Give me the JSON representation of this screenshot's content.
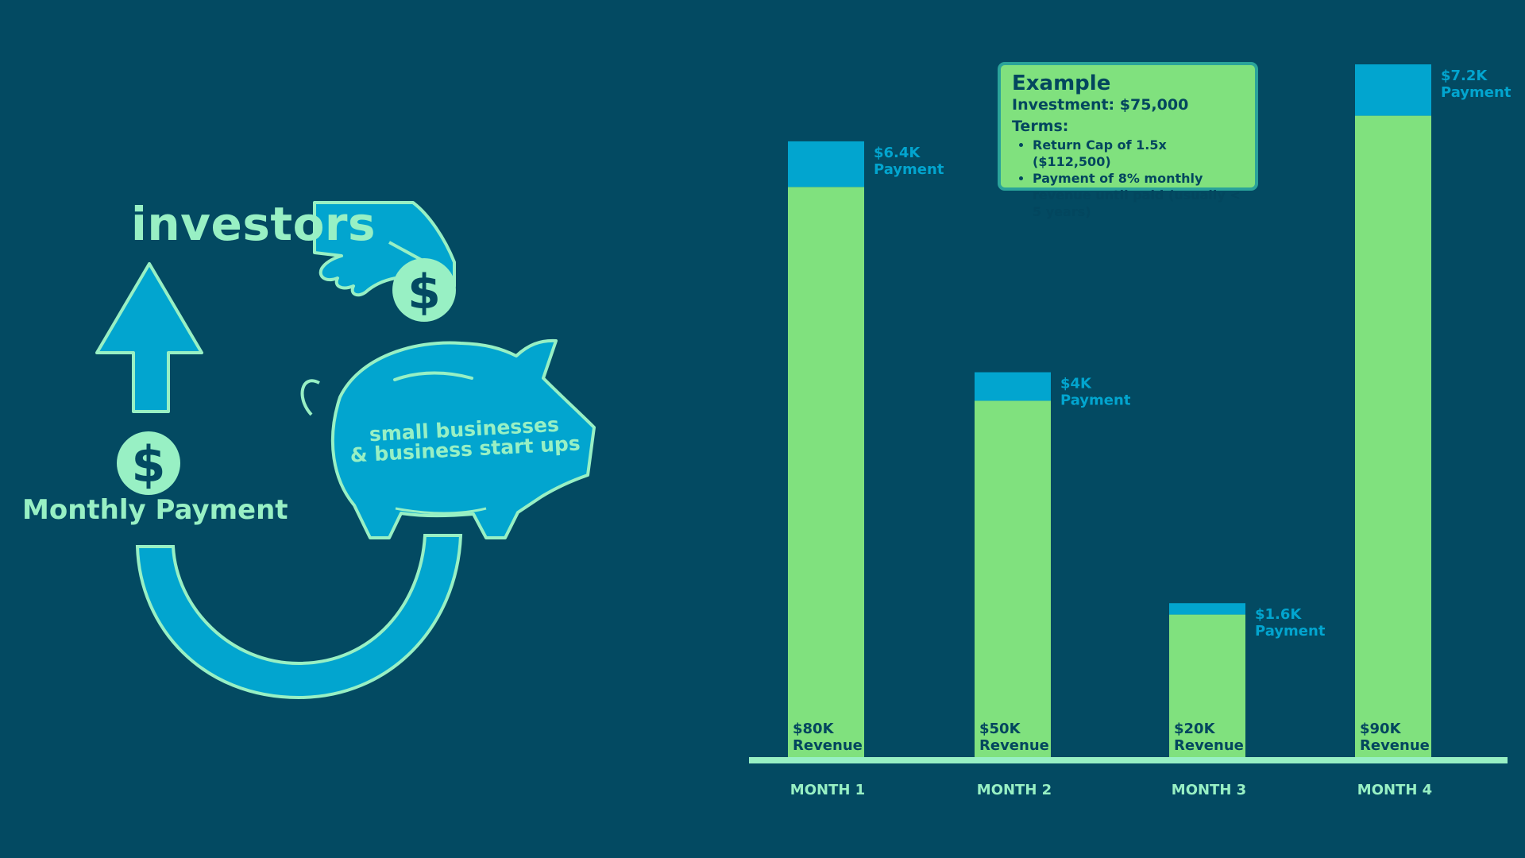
{
  "infographic": {
    "investors_label": "investors",
    "monthly_payment_label": "Monthly Payment",
    "pig_text_line1": "small businesses",
    "pig_text_line2": "& business start ups",
    "dollar_symbol": "$",
    "icons": [
      "hand-icon",
      "coin-icon",
      "piggy-bank-icon",
      "up-arrow-icon",
      "circular-arrow-icon",
      "dollar-coin-icon"
    ]
  },
  "example": {
    "title": "Example",
    "investment": "Investment: $75,000",
    "terms_label": "Terms:",
    "terms": [
      "Return Cap of 1.5x ($112,500)",
      "Payment of 8% monthly revenue until paid (usually < 5 years)"
    ]
  },
  "colors": {
    "background": "#034a62",
    "revenue": "#80e17e",
    "payment": "#02a5cf",
    "text_light": "#98f0c4",
    "text_dark": "#03465e"
  },
  "chart_data": {
    "type": "bar",
    "stacked": true,
    "categories": [
      "MONTH 1",
      "MONTH 2",
      "MONTH 3",
      "MONTH 4"
    ],
    "series": [
      {
        "name": "Revenue",
        "values": [
          80000,
          50000,
          20000,
          90000
        ]
      },
      {
        "name": "Payment",
        "values": [
          6400,
          4000,
          1600,
          7200
        ]
      }
    ],
    "revenue_labels": [
      [
        "$80K",
        "Revenue"
      ],
      [
        "$50K",
        "Revenue"
      ],
      [
        "$20K",
        "Revenue"
      ],
      [
        "$90K",
        "Revenue"
      ]
    ],
    "payment_labels": [
      [
        "$6.4K",
        "Payment"
      ],
      [
        "$4K",
        "Payment"
      ],
      [
        "$1.6K",
        "Payment"
      ],
      [
        "$7.2K",
        "Payment"
      ]
    ],
    "ylim": [
      0,
      97200
    ],
    "grid": false,
    "legend": "none"
  }
}
